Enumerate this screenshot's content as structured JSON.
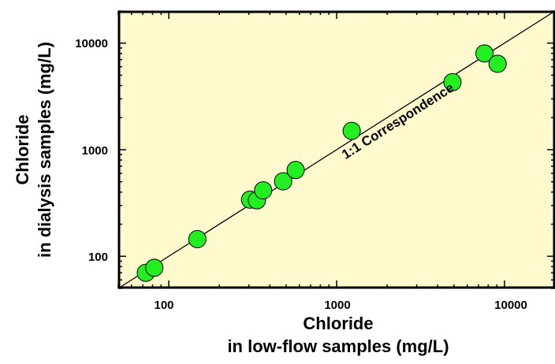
{
  "chart_data": {
    "type": "scatter",
    "xscale": "log",
    "yscale": "log",
    "xlim": [
      50,
      20000
    ],
    "ylim": [
      50,
      20000
    ],
    "xticks": [
      100,
      1000,
      10000
    ],
    "yticks": [
      100,
      1000,
      10000
    ],
    "xtick_labels": [
      "100",
      "1000",
      "10000"
    ],
    "ytick_labels": [
      "100",
      "1000",
      "10000"
    ],
    "xlabel_line1": "Chloride",
    "xlabel_line2": "in low-flow samples (mg/L)",
    "ylabel_line1": "Chloride",
    "ylabel_line2": "in dialysis samples (mg/L)",
    "annotation": "1:1 Correspondence",
    "reference_line": "1:1",
    "grid": false,
    "colors": {
      "plot_background": "#FFFACD",
      "point_fill": "#22EE22",
      "point_stroke": "#000000",
      "line": "#000000"
    },
    "series": [
      {
        "x": [
          73,
          82,
          148,
          305,
          335,
          365,
          480,
          570,
          1230,
          4900,
          7600,
          9100
        ],
        "y": [
          70,
          78,
          145,
          340,
          335,
          415,
          505,
          645,
          1500,
          4300,
          8000,
          6400
        ]
      }
    ]
  }
}
